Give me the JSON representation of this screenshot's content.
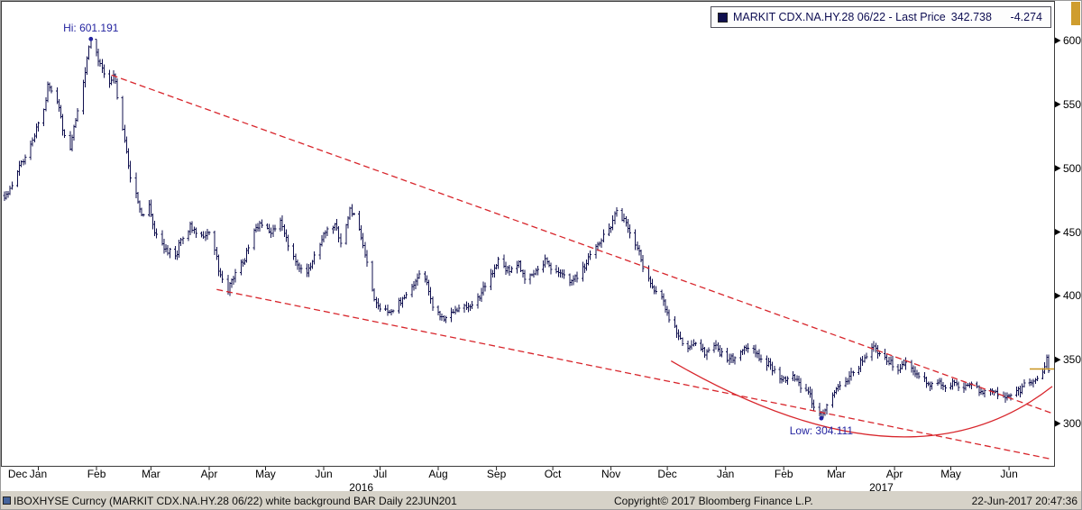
{
  "legend": {
    "series_label": "MARKIT CDX.NA.HY.28 06/22 - Last Price",
    "last_price": "342.738",
    "change": "-4.274"
  },
  "annotations": {
    "hi": "Hi: 601.191",
    "low": "Low: 304.111"
  },
  "status_bar": {
    "left": "IBOXHYSE Curncy (MARKIT CDX.NA.HY.28 06/22) white background BAR  Daily 22JUN201",
    "center": "Copyright© 2017 Bloomberg Finance L.P.",
    "right": "22-Jun-2017 20:47:36"
  },
  "colors": {
    "bar": "#10104f",
    "trendline": "#d8262c",
    "last_price_line": "#c8941e",
    "annotation": "#2424a0",
    "legend_text": "#0d0d52",
    "axis_text": "#000000",
    "status_bar_bg": "#d6d2c8",
    "scroll_indicator": "#cf9d2e"
  },
  "chart_data": {
    "type": "bar",
    "title": "MARKIT CDX.NA.HY.28 06/22 - Last Price 342.738 -4.274",
    "instrument": "MARKIT CDX.NA.HY.28 06/22",
    "frequency": "Daily",
    "grid": false,
    "legend_position": "top-right",
    "x_range": [
      "2015-12-14",
      "2017-06-24"
    ],
    "y_ticks": [
      300,
      350,
      400,
      450,
      500,
      550,
      600
    ],
    "x_ticks": [
      {
        "label": "Dec",
        "date": "2015-12-21"
      },
      {
        "label": "Jan",
        "date": "2016-01-01"
      },
      {
        "label": "Feb",
        "date": "2016-02-01"
      },
      {
        "label": "Mar",
        "date": "2016-03-01"
      },
      {
        "label": "Apr",
        "date": "2016-04-01"
      },
      {
        "label": "May",
        "date": "2016-05-01"
      },
      {
        "label": "Jun",
        "date": "2016-06-01"
      },
      {
        "label": "Jul",
        "date": "2016-07-01"
      },
      {
        "label": "Aug",
        "date": "2016-08-01"
      },
      {
        "label": "Sep",
        "date": "2016-09-01"
      },
      {
        "label": "Oct",
        "date": "2016-10-01"
      },
      {
        "label": "Nov",
        "date": "2016-11-01"
      },
      {
        "label": "Dec",
        "date": "2016-12-01"
      },
      {
        "label": "Jan",
        "date": "2017-01-01"
      },
      {
        "label": "Feb",
        "date": "2017-02-01"
      },
      {
        "label": "Mar",
        "date": "2017-03-01"
      },
      {
        "label": "Apr",
        "date": "2017-04-01"
      },
      {
        "label": "May",
        "date": "2017-05-01"
      },
      {
        "label": "Jun",
        "date": "2017-06-01"
      }
    ],
    "x_years": [
      {
        "label": "2016",
        "date": "2016-06-21"
      },
      {
        "label": "2017",
        "date": "2017-03-25"
      }
    ],
    "hi": {
      "date": "2016-01-29",
      "value": 601.191
    },
    "low": {
      "date": "2017-02-21",
      "value": 304.111
    },
    "last": {
      "date": "2017-06-22",
      "value": 342.738,
      "change": -4.274
    },
    "last_price_line": {
      "value": 342.738,
      "from_date": "2017-06-12"
    },
    "trendlines": [
      {
        "shape": "line",
        "style": "dashed",
        "points": [
          [
            "2016-02-09",
            573
          ],
          [
            "2017-06-24",
            308
          ]
        ]
      },
      {
        "shape": "line",
        "style": "dashed",
        "points": [
          [
            "2016-04-05",
            405
          ],
          [
            "2017-06-24",
            272
          ]
        ]
      },
      {
        "shape": "curve",
        "style": "solid",
        "points": [
          [
            "2016-12-03",
            349
          ],
          [
            "2017-03-27",
            290
          ],
          [
            "2017-06-24",
            329
          ]
        ]
      }
    ],
    "series_anchors": [
      [
        "2015-12-14",
        476
      ],
      [
        "2015-12-16",
        482
      ],
      [
        "2015-12-22",
        500
      ],
      [
        "2015-12-28",
        518
      ],
      [
        "2016-01-04",
        546
      ],
      [
        "2016-01-06",
        564
      ],
      [
        "2016-01-11",
        553
      ],
      [
        "2016-01-14",
        532
      ],
      [
        "2016-01-18",
        514
      ],
      [
        "2016-01-21",
        539
      ],
      [
        "2016-01-25",
        567
      ],
      [
        "2016-01-27",
        585
      ],
      [
        "2016-01-29",
        601.191
      ],
      [
        "2016-02-03",
        582
      ],
      [
        "2016-02-08",
        564
      ],
      [
        "2016-02-10",
        574
      ],
      [
        "2016-02-15",
        532
      ],
      [
        "2016-02-18",
        500
      ],
      [
        "2016-02-22",
        478
      ],
      [
        "2016-02-25",
        464
      ],
      [
        "2016-02-29",
        471
      ],
      [
        "2016-03-03",
        450
      ],
      [
        "2016-03-08",
        439
      ],
      [
        "2016-03-14",
        429
      ],
      [
        "2016-03-17",
        446
      ],
      [
        "2016-03-22",
        454
      ],
      [
        "2016-03-28",
        445
      ],
      [
        "2016-03-31",
        452
      ],
      [
        "2016-04-04",
        436
      ],
      [
        "2016-04-07",
        414
      ],
      [
        "2016-04-11",
        405
      ],
      [
        "2016-04-15",
        418
      ],
      [
        "2016-04-20",
        429
      ],
      [
        "2016-04-25",
        450
      ],
      [
        "2016-04-29",
        457
      ],
      [
        "2016-05-04",
        448
      ],
      [
        "2016-05-09",
        461
      ],
      [
        "2016-05-13",
        439
      ],
      [
        "2016-05-18",
        425
      ],
      [
        "2016-05-23",
        418
      ],
      [
        "2016-05-27",
        432
      ],
      [
        "2016-06-02",
        450
      ],
      [
        "2016-06-07",
        457
      ],
      [
        "2016-06-10",
        441
      ],
      [
        "2016-06-15",
        468
      ],
      [
        "2016-06-20",
        454
      ],
      [
        "2016-06-24",
        425
      ],
      [
        "2016-06-28",
        399
      ],
      [
        "2016-07-01",
        389
      ],
      [
        "2016-07-06",
        386
      ],
      [
        "2016-07-08",
        390
      ],
      [
        "2016-07-13",
        397
      ],
      [
        "2016-07-18",
        407
      ],
      [
        "2016-07-22",
        416
      ],
      [
        "2016-07-26",
        411
      ],
      [
        "2016-07-29",
        392
      ],
      [
        "2016-08-03",
        382
      ],
      [
        "2016-08-08",
        386
      ],
      [
        "2016-08-12",
        390
      ],
      [
        "2016-08-17",
        393
      ],
      [
        "2016-08-22",
        397
      ],
      [
        "2016-08-26",
        409
      ],
      [
        "2016-08-31",
        420
      ],
      [
        "2016-09-02",
        428
      ],
      [
        "2016-09-08",
        418
      ],
      [
        "2016-09-13",
        425
      ],
      [
        "2016-09-16",
        414
      ],
      [
        "2016-09-22",
        419
      ],
      [
        "2016-09-27",
        428
      ],
      [
        "2016-09-30",
        422
      ],
      [
        "2016-10-05",
        417
      ],
      [
        "2016-10-11",
        411
      ],
      [
        "2016-10-17",
        421
      ],
      [
        "2016-10-21",
        431
      ],
      [
        "2016-10-26",
        442
      ],
      [
        "2016-11-01",
        456
      ],
      [
        "2016-11-04",
        469
      ],
      [
        "2016-11-08",
        459
      ],
      [
        "2016-11-11",
        448
      ],
      [
        "2016-11-16",
        433
      ],
      [
        "2016-11-18",
        420
      ],
      [
        "2016-11-22",
        410
      ],
      [
        "2016-11-28",
        398
      ],
      [
        "2016-12-01",
        385
      ],
      [
        "2016-12-06",
        373
      ],
      [
        "2016-12-09",
        364
      ],
      [
        "2016-12-13",
        358
      ],
      [
        "2016-12-16",
        363
      ],
      [
        "2016-12-21",
        356
      ],
      [
        "2016-12-27",
        360
      ],
      [
        "2016-12-30",
        354
      ],
      [
        "2017-01-05",
        350
      ],
      [
        "2017-01-10",
        356
      ],
      [
        "2017-01-13",
        361
      ],
      [
        "2017-01-18",
        353
      ],
      [
        "2017-01-24",
        346
      ],
      [
        "2017-01-27",
        340
      ],
      [
        "2017-02-02",
        334
      ],
      [
        "2017-02-07",
        337
      ],
      [
        "2017-02-10",
        330
      ],
      [
        "2017-02-15",
        322
      ],
      [
        "2017-02-17",
        313
      ],
      [
        "2017-02-21",
        304.111
      ],
      [
        "2017-02-24",
        315
      ],
      [
        "2017-02-28",
        324
      ],
      [
        "2017-03-03",
        330
      ],
      [
        "2017-03-08",
        337
      ],
      [
        "2017-03-13",
        345
      ],
      [
        "2017-03-16",
        353
      ],
      [
        "2017-03-21",
        360
      ],
      [
        "2017-03-24",
        355
      ],
      [
        "2017-03-29",
        348
      ],
      [
        "2017-04-03",
        344
      ],
      [
        "2017-04-06",
        348
      ],
      [
        "2017-04-11",
        341
      ],
      [
        "2017-04-14",
        336
      ],
      [
        "2017-04-20",
        331
      ],
      [
        "2017-04-25",
        334
      ],
      [
        "2017-04-28",
        329
      ],
      [
        "2017-05-03",
        332
      ],
      [
        "2017-05-09",
        328
      ],
      [
        "2017-05-12",
        331
      ],
      [
        "2017-05-17",
        325
      ],
      [
        "2017-05-22",
        328
      ],
      [
        "2017-05-26",
        323
      ],
      [
        "2017-06-01",
        321
      ],
      [
        "2017-06-06",
        325
      ],
      [
        "2017-06-09",
        330
      ],
      [
        "2017-06-14",
        335
      ],
      [
        "2017-06-19",
        342
      ],
      [
        "2017-06-21",
        350
      ],
      [
        "2017-06-22",
        342.738
      ]
    ]
  }
}
